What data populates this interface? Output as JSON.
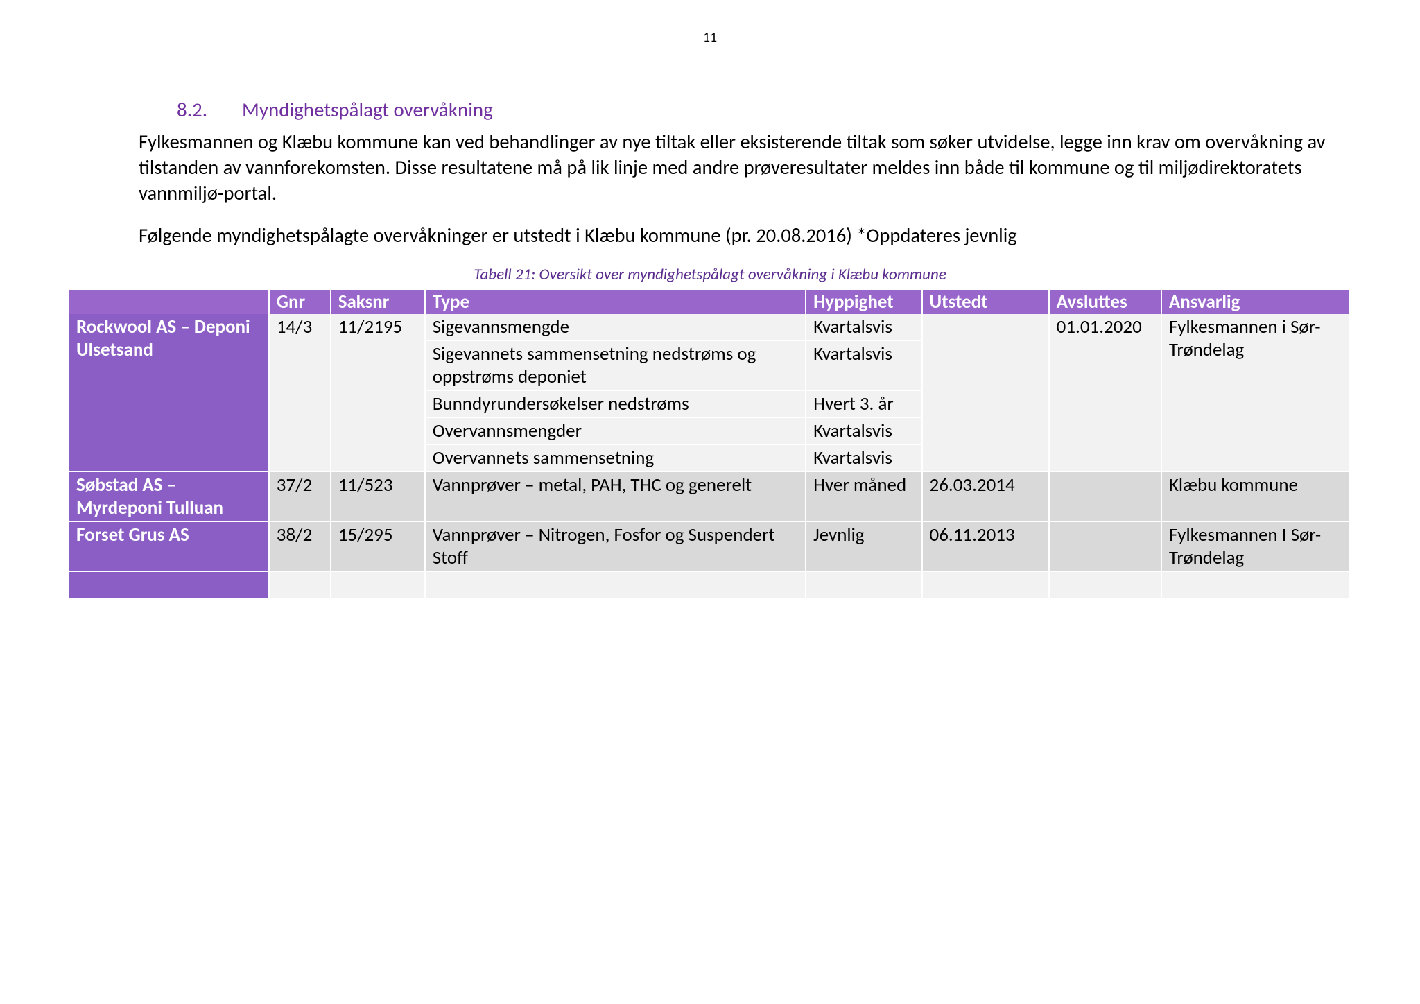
{
  "pageNumber": "11",
  "section": {
    "number": "8.2.",
    "title": "Myndighetspålagt overvåkning"
  },
  "paragraph1": "Fylkesmannen og Klæbu kommune kan ved behandlinger av nye tiltak eller eksisterende tiltak som søker utvidelse, legge inn krav om overvåkning av tilstanden av vannforekomsten. Disse resultatene må på lik linje med andre prøveresultater meldes inn både til kommune og til miljødirektoratets vannmiljø-portal.",
  "paragraph2": "Følgende myndighetspålagte overvåkninger er utstedt i Klæbu kommune (pr. 20.08.2016) *Oppdateres jevnlig",
  "tableCaption": "Tabell 21: Oversikt over myndighetspålagt overvåkning i Klæbu kommune",
  "colors": {
    "headingPurple": "#7030a0",
    "captionPurple": "#5b2d8e",
    "headerBg": "#9966cc",
    "rowHeaderBg": "#8a5ec4",
    "cellLight": "#f2f2f2",
    "cellDark": "#d9d9d9",
    "text": "#000000",
    "white": "#ffffff"
  },
  "table": {
    "headers": {
      "name": "",
      "gnr": "Gnr",
      "saksnr": "Saksnr",
      "type": "Type",
      "hyppighet": "Hyppighet",
      "utstedt": "Utstedt",
      "avsluttes": "Avsluttes",
      "ansvarlig": "Ansvarlig"
    },
    "group1": {
      "name": "Rockwool AS – Deponi Ulsetsand",
      "gnr": "14/3",
      "saksnr": "11/2195",
      "utstedt": "",
      "avsluttes": "01.01.2020",
      "ansvarlig": "Fylkesmannen i Sør-Trøndelag",
      "rows": [
        {
          "type": "Sigevannsmengde",
          "hyppighet": "Kvartalsvis"
        },
        {
          "type": "Sigevannets sammensetning nedstrøms og oppstrøms deponiet",
          "hyppighet": "Kvartalsvis"
        },
        {
          "type": "Bunndyrundersøkelser nedstrøms",
          "hyppighet": "Hvert 3. år"
        },
        {
          "type": "Overvannsmengder",
          "hyppighet": "Kvartalsvis"
        },
        {
          "type": "Overvannets sammensetning",
          "hyppighet": "Kvartalsvis"
        }
      ]
    },
    "group2": {
      "name": "Søbstad AS – Myrdeponi Tulluan",
      "gnr": "37/2",
      "saksnr": "11/523",
      "type": "Vannprøver – metal, PAH, THC og generelt",
      "hyppighet": "Hver måned",
      "utstedt": "26.03.2014",
      "avsluttes": "",
      "ansvarlig": "Klæbu kommune"
    },
    "group3": {
      "name": "Forset Grus AS",
      "gnr": "38/2",
      "saksnr": "15/295",
      "type": "Vannprøver – Nitrogen, Fosfor og Suspendert Stoff",
      "hyppighet": "Jevnlig",
      "utstedt": "06.11.2013",
      "avsluttes": "",
      "ansvarlig": "Fylkesmannen I Sør-Trøndelag"
    }
  }
}
